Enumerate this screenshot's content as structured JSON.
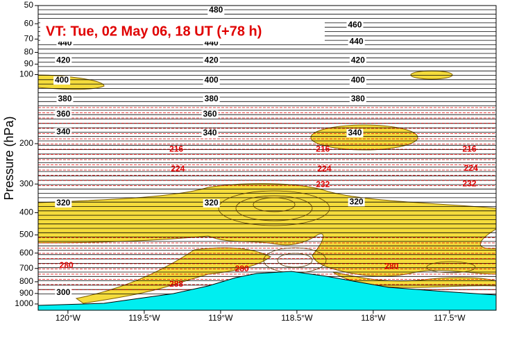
{
  "chart_data": {
    "type": "contour",
    "title": "VT:  Tue, 02 May 06, 18 UT (+78 h)",
    "ylabel": "Pressure (hPa)",
    "log_y": true,
    "xlim": [
      -120.195,
      -117.195
    ],
    "ylim": [
      50,
      1065
    ],
    "xticks": [
      {
        "value": -120,
        "label": "120°W"
      },
      {
        "value": -119.5,
        "label": "119.5°W"
      },
      {
        "value": -119,
        "label": "119°W"
      },
      {
        "value": -118.5,
        "label": "118.5°W"
      },
      {
        "value": -118,
        "label": "118°W"
      },
      {
        "value": -117.5,
        "label": "117.5°W"
      }
    ],
    "yticks": [
      50,
      60,
      70,
      80,
      90,
      100,
      200,
      300,
      400,
      500,
      600,
      700,
      800,
      900,
      1000
    ],
    "contour_labels": [
      {
        "text": "480",
        "lon": -119.03,
        "p": 52.5,
        "color": "#000000"
      },
      {
        "text": "460",
        "lon": -118.12,
        "p": 61,
        "color": "#000000"
      },
      {
        "text": "440",
        "lon": -120.02,
        "p": 73,
        "color": "#000000"
      },
      {
        "text": "440",
        "lon": -119.06,
        "p": 73,
        "color": "#000000"
      },
      {
        "text": "440",
        "lon": -118.11,
        "p": 72,
        "color": "#000000"
      },
      {
        "text": "420",
        "lon": -120.03,
        "p": 87,
        "color": "#000000"
      },
      {
        "text": "420",
        "lon": -119.06,
        "p": 87,
        "color": "#000000"
      },
      {
        "text": "420",
        "lon": -118.1,
        "p": 87,
        "color": "#000000"
      },
      {
        "text": "400",
        "lon": -120.04,
        "p": 106,
        "color": "#000000"
      },
      {
        "text": "400",
        "lon": -119.06,
        "p": 106,
        "color": "#000000"
      },
      {
        "text": "400",
        "lon": -118.1,
        "p": 106,
        "color": "#000000"
      },
      {
        "text": "380",
        "lon": -120.02,
        "p": 128,
        "color": "#000000"
      },
      {
        "text": "380",
        "lon": -119.06,
        "p": 128,
        "color": "#000000"
      },
      {
        "text": "380",
        "lon": -118.1,
        "p": 128,
        "color": "#000000"
      },
      {
        "text": "360",
        "lon": -120.03,
        "p": 149,
        "color": "#000000"
      },
      {
        "text": "360",
        "lon": -119.07,
        "p": 149,
        "color": "#000000"
      },
      {
        "text": "340",
        "lon": -120.03,
        "p": 178,
        "color": "#000000"
      },
      {
        "text": "340",
        "lon": -119.07,
        "p": 180,
        "color": "#000000"
      },
      {
        "text": "340",
        "lon": -118.12,
        "p": 180,
        "color": "#000000"
      },
      {
        "text": "320",
        "lon": -120.03,
        "p": 364,
        "color": "#000000"
      },
      {
        "text": "320",
        "lon": -119.06,
        "p": 364,
        "color": "#000000"
      },
      {
        "text": "320",
        "lon": -118.11,
        "p": 360,
        "color": "#000000"
      },
      {
        "text": "300",
        "lon": -120.03,
        "p": 895,
        "color": "#000000"
      },
      {
        "text": "216",
        "lon": -119.29,
        "p": 212,
        "color": "#e00000"
      },
      {
        "text": "216",
        "lon": -118.33,
        "p": 212,
        "color": "#e00000"
      },
      {
        "text": "216",
        "lon": -117.37,
        "p": 212,
        "color": "#e00000"
      },
      {
        "text": "224",
        "lon": -119.28,
        "p": 259,
        "color": "#e00000"
      },
      {
        "text": "224",
        "lon": -118.32,
        "p": 259,
        "color": "#e00000"
      },
      {
        "text": "224",
        "lon": -117.36,
        "p": 257,
        "color": "#e00000"
      },
      {
        "text": "232",
        "lon": -118.33,
        "p": 302,
        "color": "#e00000"
      },
      {
        "text": "232",
        "lon": -117.37,
        "p": 300,
        "color": "#e00000"
      },
      {
        "text": "280",
        "lon": -120.01,
        "p": 682,
        "color": "#e00000"
      },
      {
        "text": "280",
        "lon": -118.86,
        "p": 706,
        "color": "#e00000"
      },
      {
        "text": "280",
        "lon": -117.88,
        "p": 687,
        "color": "#e00000"
      },
      {
        "text": "288",
        "lon": -119.29,
        "p": 823,
        "color": "#e00000"
      }
    ]
  }
}
